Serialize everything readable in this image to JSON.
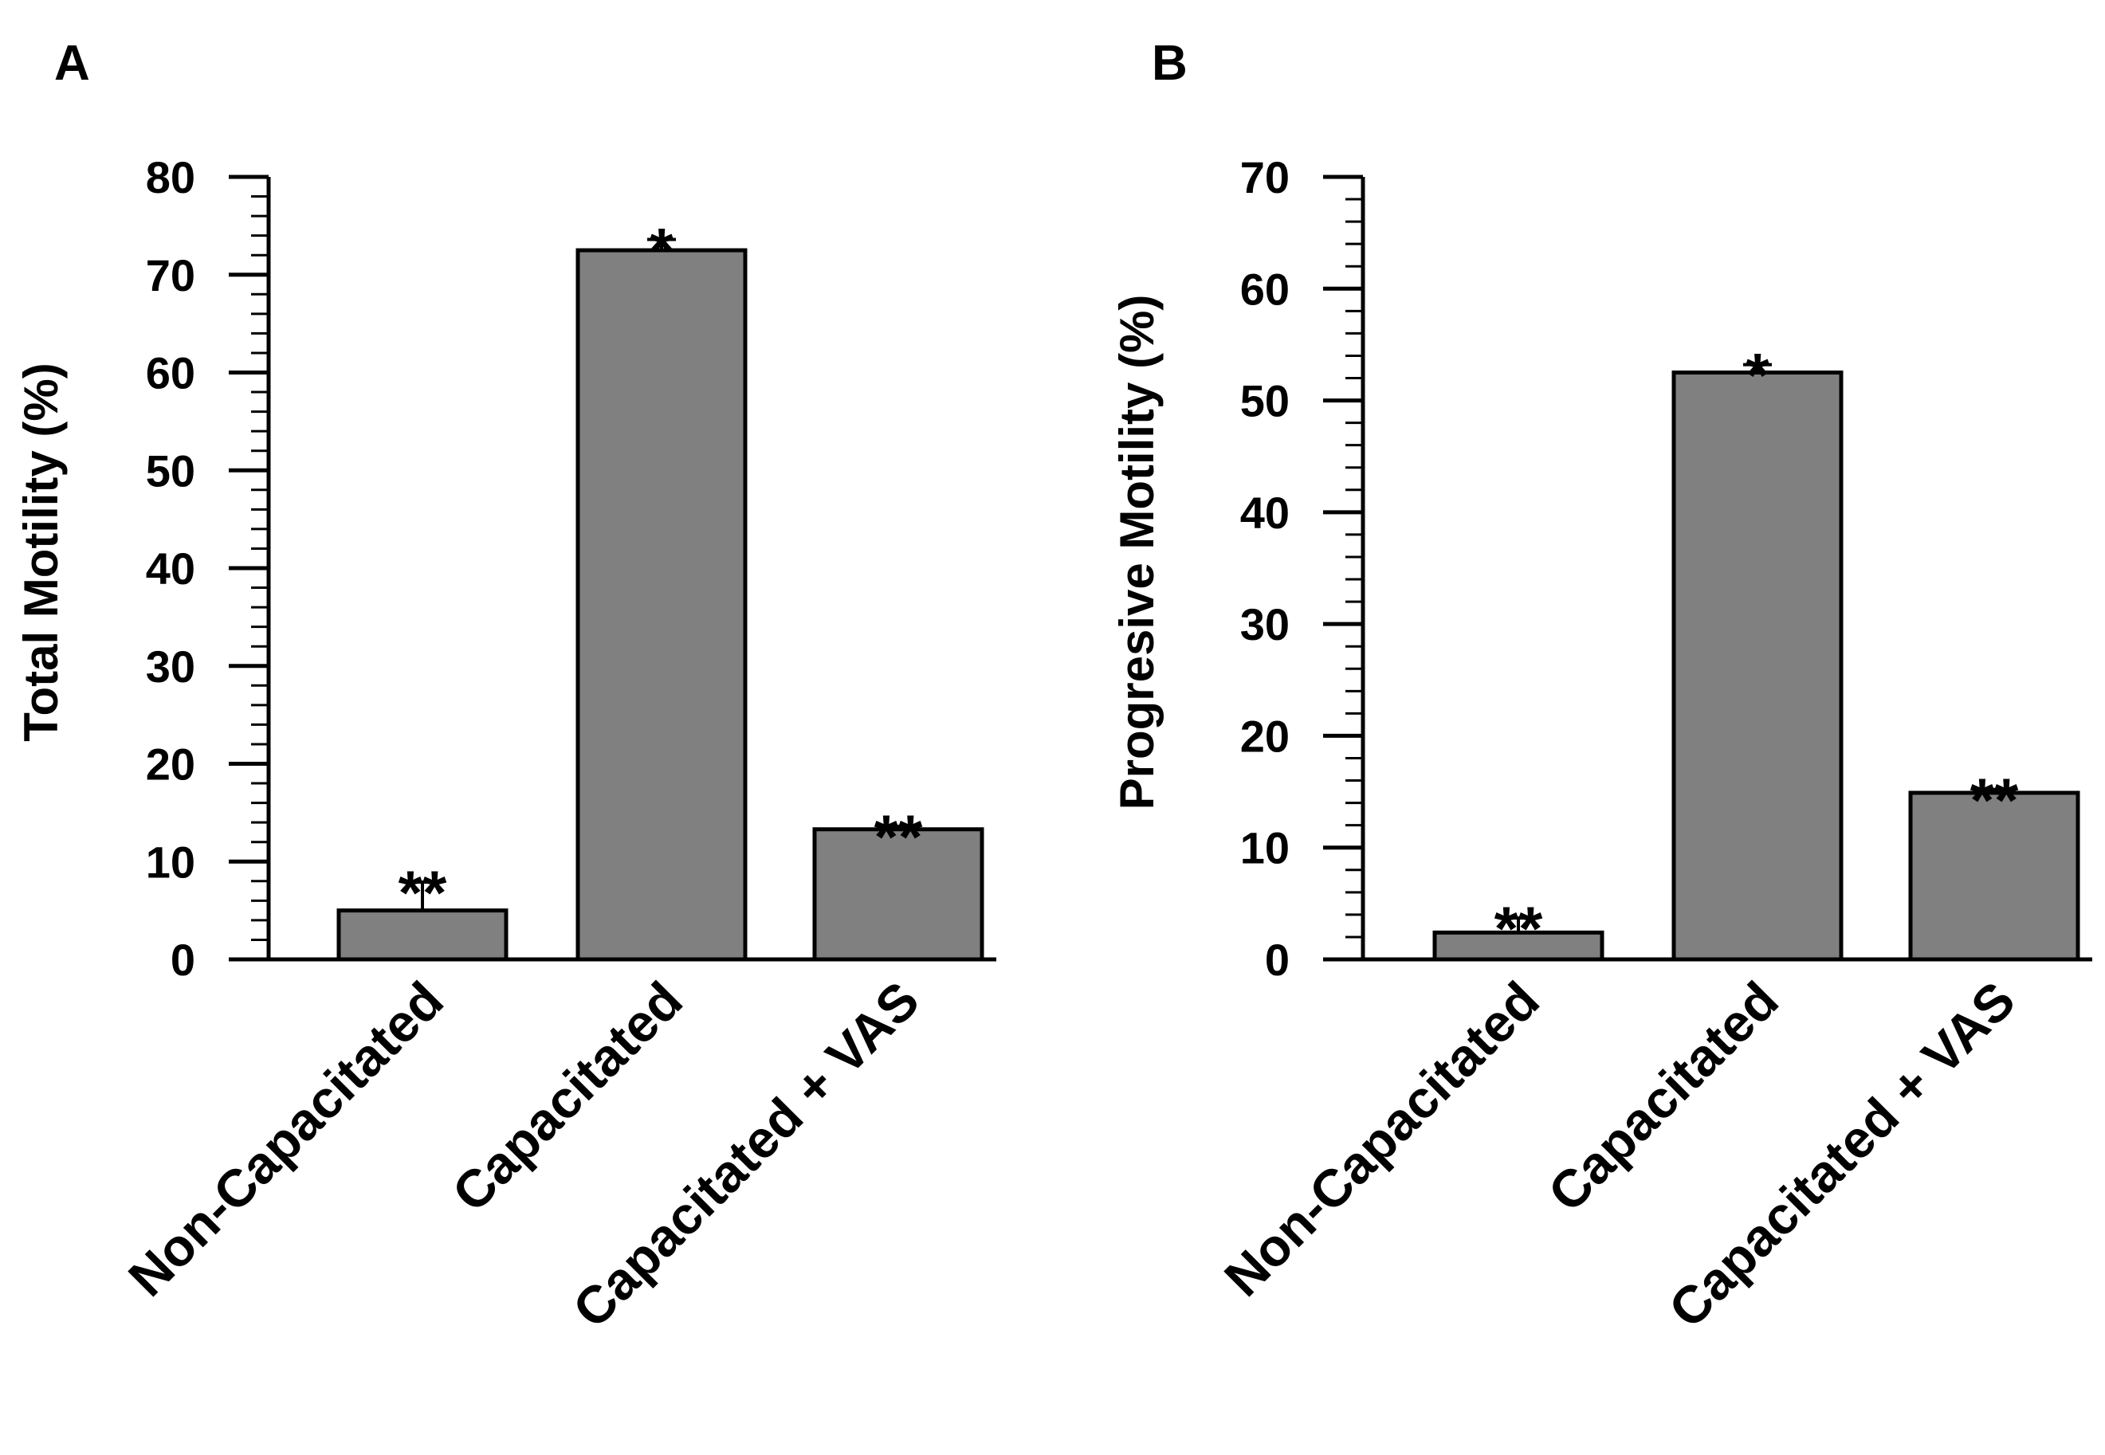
{
  "colors": {
    "bar_fill": "#808080",
    "bar_stroke": "#000000",
    "axis": "#000000",
    "background": "#ffffff"
  },
  "chart_data": [
    {
      "panel": "A",
      "type": "bar",
      "title": "",
      "xlabel": "",
      "ylabel": "Total Motility (%)",
      "ylim": [
        0,
        80
      ],
      "major_ticks": [
        0,
        10,
        20,
        30,
        40,
        50,
        60,
        70,
        80
      ],
      "minor_step": 2,
      "categories": [
        "Non-Capacitated",
        "Capacitated",
        "Capacitated + VAS"
      ],
      "values": [
        5,
        72.5,
        13.3
      ],
      "errors": [
        2.9,
        1.1,
        0.3
      ],
      "significance": [
        "**",
        "*",
        "**"
      ]
    },
    {
      "panel": "B",
      "type": "bar",
      "title": "",
      "xlabel": "",
      "ylabel": "Progresive Motility (%)",
      "ylim": [
        0,
        70
      ],
      "major_ticks": [
        0,
        10,
        20,
        30,
        40,
        50,
        60,
        70
      ],
      "minor_step": 2,
      "categories": [
        "Non-Capacitated",
        "Capacitated",
        "Capacitated + VAS"
      ],
      "values": [
        2.4,
        52.5,
        14.9
      ],
      "errors": [
        1.3,
        0.7,
        0.3
      ],
      "significance": [
        "**",
        "*",
        "**"
      ]
    }
  ]
}
